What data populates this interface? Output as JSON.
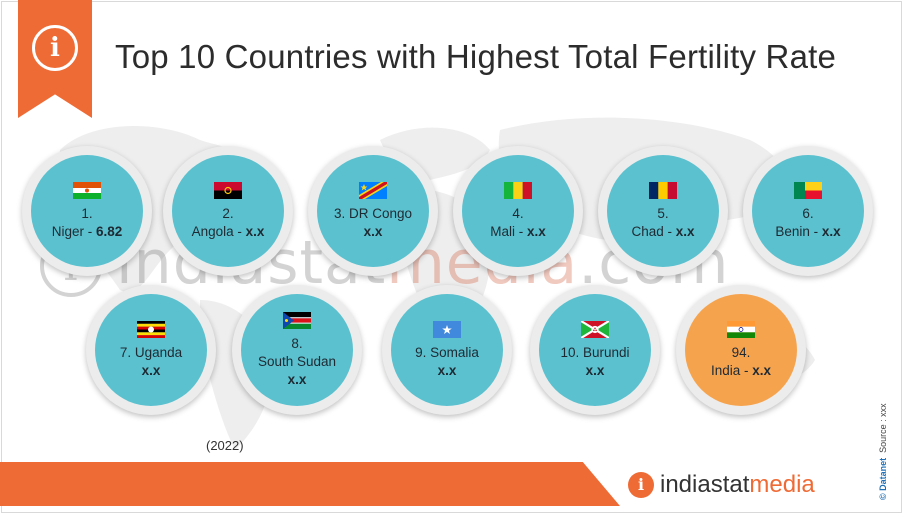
{
  "title": "Top 10 Countries with Highest Total Fertility Rate",
  "year_label": "(2022)",
  "watermark": {
    "part1": "indiastat",
    "part2": "media",
    "part3": ".com"
  },
  "logo": {
    "part1": "indiastat",
    "part2": "media"
  },
  "source_credit": {
    "brand": "© Datanet",
    "source": "Source : xxx"
  },
  "colors": {
    "accent": "#ef6b35",
    "circle_teal": "#5bc1cf",
    "circle_orange": "#f6a34e"
  },
  "countries": [
    {
      "line1": "1.",
      "line2": "Niger - ",
      "value": "6.82",
      "flag": "niger"
    },
    {
      "line1": "2.",
      "line2": "Angola - ",
      "value": "x.x",
      "flag": "angola"
    },
    {
      "line1": "3. DR Congo",
      "line2": "",
      "value": "x.x",
      "flag": "drcongo"
    },
    {
      "line1": "4.",
      "line2": "Mali - ",
      "value": "x.x",
      "flag": "mali"
    },
    {
      "line1": "5.",
      "line2": "Chad - ",
      "value": "x.x",
      "flag": "chad"
    },
    {
      "line1": "6.",
      "line2": "Benin - ",
      "value": "x.x",
      "flag": "benin"
    },
    {
      "line1": "7. Uganda",
      "line2": "",
      "value": "x.x",
      "flag": "uganda"
    },
    {
      "line1": "8.",
      "line2": "South Sudan",
      "value": "x.x",
      "flag": "southsudan"
    },
    {
      "line1": "9. Somalia",
      "line2": "",
      "value": "x.x",
      "flag": "somalia"
    },
    {
      "line1": "10. Burundi",
      "line2": "",
      "value": "x.x",
      "flag": "burundi"
    },
    {
      "line1": "94.",
      "line2": "India - ",
      "value": "x.x",
      "flag": "india"
    }
  ]
}
